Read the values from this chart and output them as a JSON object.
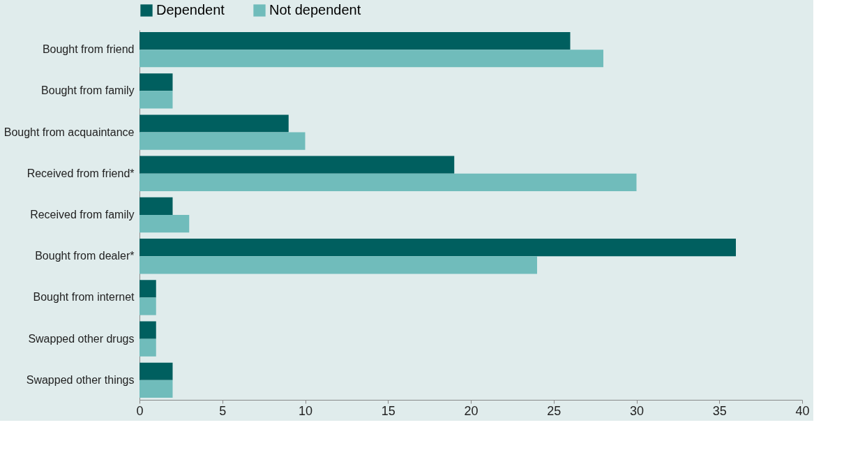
{
  "chart_data": {
    "type": "bar",
    "orientation": "horizontal",
    "categories": [
      "Bought from friend",
      "Bought from family",
      "Bought from acquaintance",
      "Received from friend*",
      "Received from family",
      "Bought from dealer*",
      "Bought from internet",
      "Swapped other drugs",
      "Swapped other things"
    ],
    "series": [
      {
        "name": "Dependent",
        "color": "#005f5f",
        "values": [
          26,
          2,
          9,
          19,
          2,
          36,
          1,
          1,
          2
        ]
      },
      {
        "name": "Not dependent",
        "color": "#70bcbb",
        "values": [
          28,
          2,
          10,
          30,
          3,
          24,
          1,
          1,
          2
        ]
      }
    ],
    "xlim": [
      0,
      40
    ],
    "xticks": [
      0,
      5,
      10,
      15,
      20,
      25,
      30,
      35,
      40
    ],
    "grid": false,
    "legend": "top"
  }
}
